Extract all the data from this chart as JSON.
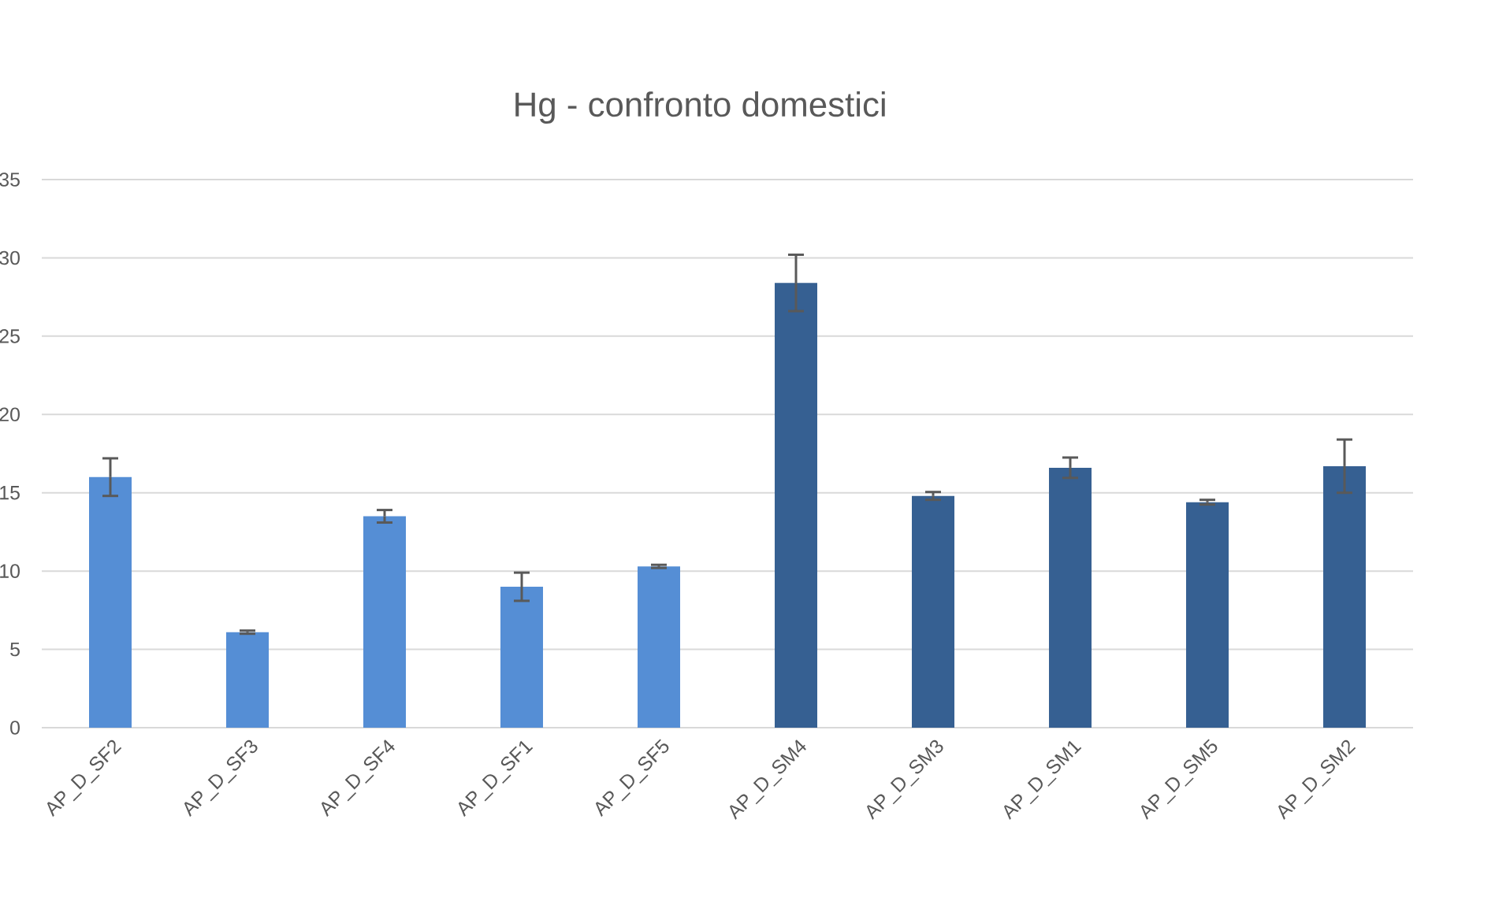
{
  "chart_data": {
    "type": "bar",
    "title": "Hg - confronto domestici",
    "categories": [
      "AP_D_SF2",
      "AP_D_SF3",
      "AP_D_SF4",
      "AP_D_SF1",
      "AP_D_SF5",
      "AP_D_SM4",
      "AP_D_SM3",
      "AP_D_SM1",
      "AP_D_SM5",
      "AP_D_SM2"
    ],
    "values": [
      16.0,
      6.1,
      13.5,
      9.0,
      10.3,
      28.4,
      14.8,
      16.6,
      14.4,
      16.7
    ],
    "errors": [
      1.2,
      0.1,
      0.4,
      0.9,
      0.1,
      1.8,
      0.25,
      0.65,
      0.15,
      1.7
    ],
    "colors": [
      "#558ed5",
      "#558ed5",
      "#558ed5",
      "#558ed5",
      "#558ed5",
      "#366092",
      "#366092",
      "#366092",
      "#366092",
      "#366092"
    ],
    "ylim": [
      0,
      35
    ],
    "yticks": [
      0,
      5,
      10,
      15,
      20,
      25,
      30,
      35
    ],
    "grid": "y"
  }
}
